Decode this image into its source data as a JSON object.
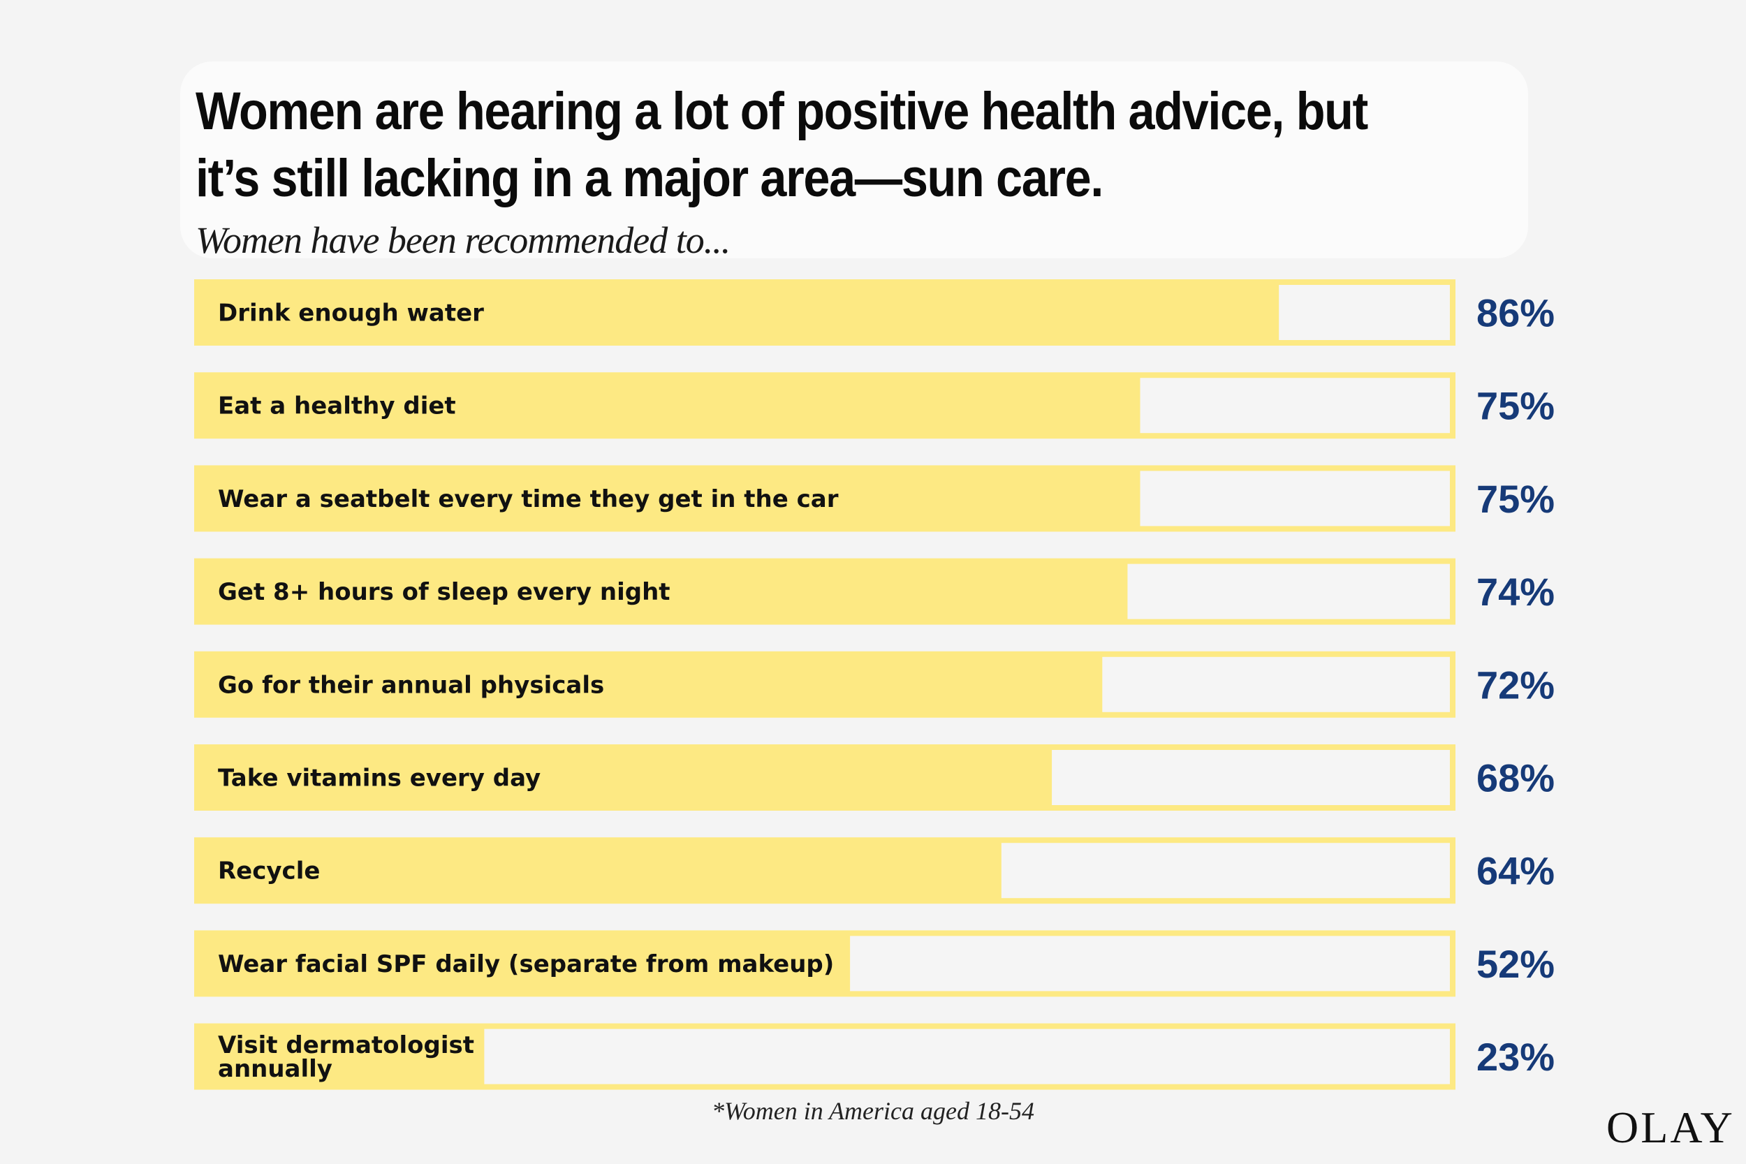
{
  "title": "Women are hearing a lot of positive health advice, but it’s still lacking in a major area—sun care.",
  "subtitle": "Women have been recommended to...",
  "footnote": "*Women in America aged 18-54",
  "brand": "OLAY",
  "colors": {
    "bar_fill": "#fde983",
    "bar_track": "#f5f5f5",
    "value_text": "#163a78",
    "background": "#f4f4f4"
  },
  "chart_data": {
    "type": "bar",
    "orientation": "horizontal",
    "title": "Women are hearing a lot of positive health advice, but it’s still lacking in a major area—sun care.",
    "subtitle": "Women have been recommended to...",
    "unit": "%",
    "ylim": [
      0,
      100
    ],
    "categories": [
      "Drink enough water",
      "Eat a healthy diet",
      "Wear a seatbelt every time they get in the car",
      "Get 8+ hours of sleep every night",
      "Go for their annual physicals",
      "Take vitamins every day",
      "Recycle",
      "Wear facial SPF daily (separate from makeup)",
      "Visit dermatologist annually"
    ],
    "label_lines": [
      [
        "Drink enough water"
      ],
      [
        "Eat a healthy diet"
      ],
      [
        "Wear a seatbelt every time they get in the car"
      ],
      [
        "Get 8+ hours of sleep every night"
      ],
      [
        "Go for their annual physicals"
      ],
      [
        "Take vitamins every day"
      ],
      [
        "Recycle"
      ],
      [
        "Wear facial SPF daily (separate from makeup)"
      ],
      [
        "Visit dermatologist",
        "annually"
      ]
    ],
    "values": [
      86,
      75,
      75,
      74,
      72,
      68,
      64,
      52,
      23
    ],
    "value_labels": [
      "86%",
      "75%",
      "75%",
      "74%",
      "72%",
      "68%",
      "64%",
      "52%",
      "23%"
    ]
  }
}
